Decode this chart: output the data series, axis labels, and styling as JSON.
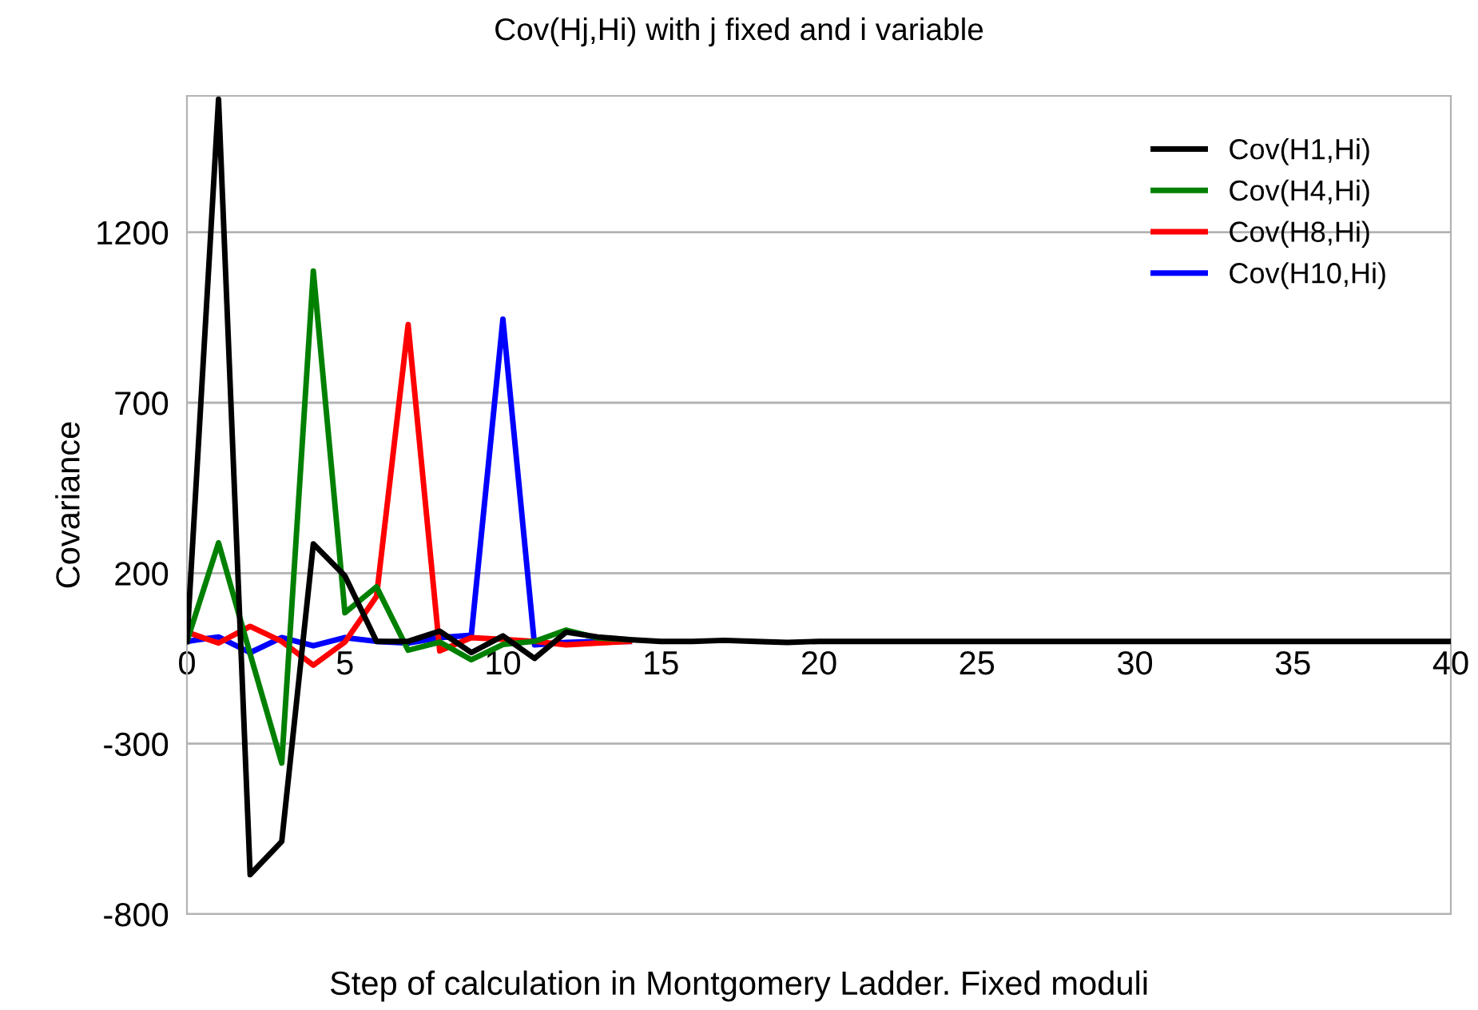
{
  "chart_data": {
    "type": "line",
    "title": "Cov(Hj,Hi) with j fixed and i variable",
    "xlabel": "Step of calculation in Montgomery Ladder. Fixed moduli",
    "ylabel": "Covariance",
    "x": [
      0,
      1,
      2,
      3,
      4,
      5,
      6,
      7,
      8,
      9,
      10,
      11,
      12,
      13,
      14,
      15,
      16,
      17,
      18,
      19,
      20,
      21,
      22,
      23,
      24,
      25,
      26,
      27,
      28,
      29,
      30,
      31,
      32,
      33,
      34,
      35,
      36,
      37,
      38,
      39,
      40
    ],
    "series": [
      {
        "name": "Cov(H1,Hi)",
        "color": "#000000",
        "values": [
          0,
          1590,
          -684,
          -587,
          286,
          192,
          0,
          0,
          30,
          -33,
          16,
          -50,
          27,
          13,
          5,
          0,
          0,
          3,
          0,
          -3,
          0,
          0,
          0,
          0,
          0,
          0,
          0,
          0,
          0,
          0,
          0,
          0,
          0,
          0,
          0,
          0,
          0,
          0,
          0,
          0,
          0
        ]
      },
      {
        "name": "Cov(H4,Hi)",
        "color": "#008000",
        "values": [
          0,
          289,
          -37,
          -357,
          1086,
          84,
          160,
          -26,
          -2,
          -54,
          -9,
          0,
          33,
          10,
          5,
          null,
          null,
          null,
          null,
          null,
          null,
          null,
          null,
          null,
          null,
          null,
          null,
          null,
          null,
          null,
          null,
          null,
          null,
          null,
          null,
          null,
          null,
          null,
          null,
          null,
          null
        ]
      },
      {
        "name": "Cov(H8,Hi)",
        "color": "#ff0000",
        "values": [
          27,
          -5,
          44,
          0,
          -70,
          -2,
          132,
          929,
          -28,
          11,
          6,
          0,
          -10,
          -5,
          0,
          null,
          null,
          null,
          null,
          null,
          null,
          null,
          null,
          null,
          null,
          null,
          null,
          null,
          null,
          null,
          null,
          null,
          null,
          null,
          null,
          null,
          null,
          null,
          null,
          null,
          null
        ]
      },
      {
        "name": "Cov(H10,Hi)",
        "color": "#0000ff",
        "values": [
          0,
          13,
          -33,
          11,
          -13,
          11,
          0,
          -5,
          11,
          18,
          945,
          -10,
          -3,
          0,
          0,
          null,
          null,
          null,
          null,
          null,
          null,
          null,
          null,
          null,
          null,
          null,
          null,
          null,
          null,
          null,
          null,
          null,
          null,
          null,
          null,
          null,
          null,
          null,
          null,
          null,
          null
        ]
      }
    ],
    "xlim": [
      0,
      40
    ],
    "xticks": [
      0,
      5,
      10,
      15,
      20,
      25,
      30,
      35,
      40
    ],
    "ylim": [
      -800,
      1600
    ],
    "yticks": [
      -800,
      -300,
      200,
      700,
      1200
    ],
    "grid": "y",
    "legend": "top right",
    "marker": "none",
    "line_style": "solid"
  }
}
